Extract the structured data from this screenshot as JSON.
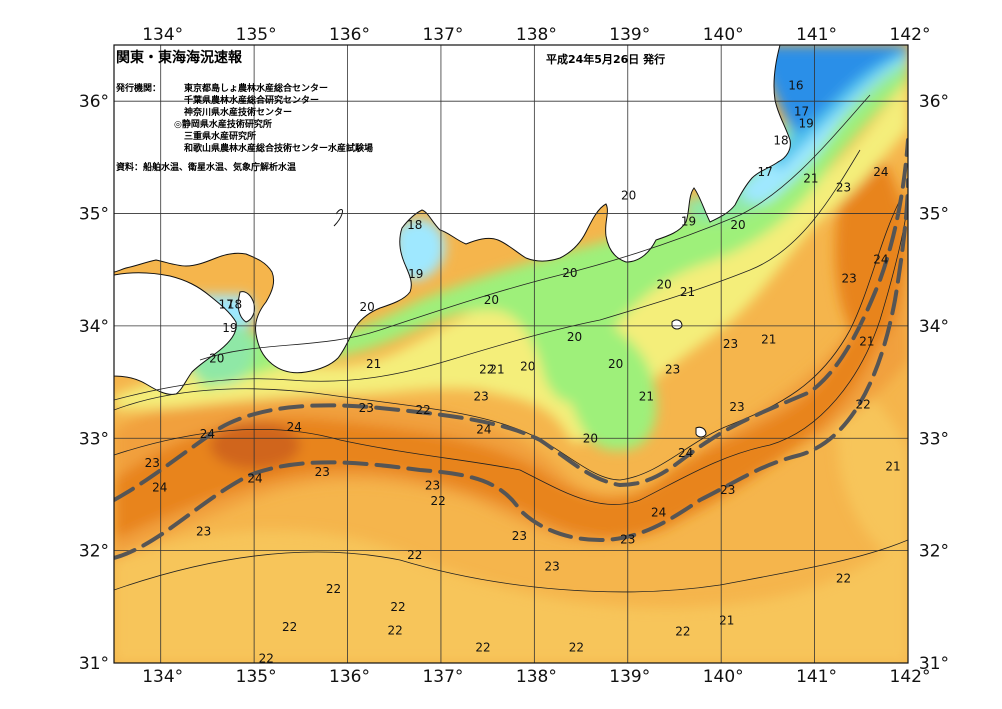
{
  "title": "関東・東海海況速報",
  "issue_date": "平成24年5月26日 発行",
  "issuers_label": "発行機関：",
  "issuers": [
    "東京都島しょ農林水産総合センター",
    "千葉県農林水産総合研究センター",
    "神奈川県水産技術センター",
    "◎静岡県水産技術研究所",
    "三重県水産研究所",
    "和歌山県農林水産総合技術センター水産試験場"
  ],
  "source": "資料：船舶水温、衛星水温、気象庁解析水温",
  "lon_ticks": [
    "134°",
    "135°",
    "136°",
    "137°",
    "138°",
    "139°",
    "140°",
    "141°",
    "142°"
  ],
  "lat_ticks": [
    "36°",
    "35°",
    "34°",
    "33°",
    "32°",
    "31°"
  ],
  "isotherm_labels": [
    {
      "t": "16",
      "lon": 140.8,
      "lat": 36.14
    },
    {
      "t": "17",
      "lon": 140.86,
      "lat": 35.91
    },
    {
      "t": "19",
      "lon": 140.91,
      "lat": 35.8
    },
    {
      "t": "18",
      "lon": 140.64,
      "lat": 35.65
    },
    {
      "t": "17",
      "lon": 140.47,
      "lat": 35.37
    },
    {
      "t": "21",
      "lon": 140.96,
      "lat": 35.31
    },
    {
      "t": "23",
      "lon": 141.31,
      "lat": 35.23
    },
    {
      "t": "24",
      "lon": 141.71,
      "lat": 35.37
    },
    {
      "t": "20",
      "lon": 139.01,
      "lat": 35.16
    },
    {
      "t": "19",
      "lon": 139.65,
      "lat": 34.93
    },
    {
      "t": "20",
      "lon": 140.18,
      "lat": 34.9
    },
    {
      "t": "24",
      "lon": 141.71,
      "lat": 34.59
    },
    {
      "t": "23",
      "lon": 141.37,
      "lat": 34.42
    },
    {
      "t": "21",
      "lon": 141.56,
      "lat": 33.86
    },
    {
      "t": "18",
      "lon": 134.79,
      "lat": 34.19
    },
    {
      "t": "18",
      "lon": 136.72,
      "lat": 34.9
    },
    {
      "t": "17",
      "lon": 134.7,
      "lat": 34.19
    },
    {
      "t": "19",
      "lon": 134.74,
      "lat": 33.98
    },
    {
      "t": "19",
      "lon": 136.73,
      "lat": 34.46
    },
    {
      "t": "20",
      "lon": 134.6,
      "lat": 33.71
    },
    {
      "t": "20",
      "lon": 136.21,
      "lat": 34.17
    },
    {
      "t": "20",
      "lon": 138.38,
      "lat": 34.47
    },
    {
      "t": "20",
      "lon": 137.54,
      "lat": 34.23
    },
    {
      "t": "21",
      "lon": 139.64,
      "lat": 34.3
    },
    {
      "t": "20",
      "lon": 139.39,
      "lat": 34.37
    },
    {
      "t": "20",
      "lon": 138.43,
      "lat": 33.9
    },
    {
      "t": "21",
      "lon": 140.51,
      "lat": 33.88
    },
    {
      "t": "23",
      "lon": 140.1,
      "lat": 33.84
    },
    {
      "t": "21",
      "lon": 136.28,
      "lat": 33.66
    },
    {
      "t": "21",
      "lon": 137.6,
      "lat": 33.61
    },
    {
      "t": "22",
      "lon": 137.49,
      "lat": 33.61
    },
    {
      "t": "20",
      "lon": 137.93,
      "lat": 33.64
    },
    {
      "t": "20",
      "lon": 138.87,
      "lat": 33.66
    },
    {
      "t": "23",
      "lon": 139.48,
      "lat": 33.61
    },
    {
      "t": "21",
      "lon": 139.2,
      "lat": 33.37
    },
    {
      "t": "23",
      "lon": 137.43,
      "lat": 33.37
    },
    {
      "t": "23",
      "lon": 136.2,
      "lat": 33.27
    },
    {
      "t": "22",
      "lon": 136.81,
      "lat": 33.25
    },
    {
      "t": "23",
      "lon": 140.17,
      "lat": 33.28
    },
    {
      "t": "22",
      "lon": 141.52,
      "lat": 33.3
    },
    {
      "t": "24",
      "lon": 134.5,
      "lat": 33.04
    },
    {
      "t": "24",
      "lon": 135.43,
      "lat": 33.1
    },
    {
      "t": "24",
      "lon": 137.46,
      "lat": 33.08
    },
    {
      "t": "20",
      "lon": 138.6,
      "lat": 33.0
    },
    {
      "t": "24",
      "lon": 139.62,
      "lat": 32.87
    },
    {
      "t": "21",
      "lon": 141.84,
      "lat": 32.75
    },
    {
      "t": "23",
      "lon": 133.91,
      "lat": 32.78
    },
    {
      "t": "23",
      "lon": 135.73,
      "lat": 32.7
    },
    {
      "t": "24",
      "lon": 135.01,
      "lat": 32.64
    },
    {
      "t": "24",
      "lon": 133.99,
      "lat": 32.56
    },
    {
      "t": "23",
      "lon": 136.91,
      "lat": 32.58
    },
    {
      "t": "22",
      "lon": 136.97,
      "lat": 32.44
    },
    {
      "t": "23",
      "lon": 140.07,
      "lat": 32.54
    },
    {
      "t": "24",
      "lon": 139.33,
      "lat": 32.34
    },
    {
      "t": "23",
      "lon": 134.46,
      "lat": 32.17
    },
    {
      "t": "23",
      "lon": 137.84,
      "lat": 32.13
    },
    {
      "t": "23",
      "lon": 139.0,
      "lat": 32.1
    },
    {
      "t": "22",
      "lon": 136.72,
      "lat": 31.96
    },
    {
      "t": "23",
      "lon": 138.19,
      "lat": 31.86
    },
    {
      "t": "22",
      "lon": 141.31,
      "lat": 31.75
    },
    {
      "t": "22",
      "lon": 135.85,
      "lat": 31.66
    },
    {
      "t": "22",
      "lon": 136.54,
      "lat": 31.5
    },
    {
      "t": "21",
      "lon": 140.06,
      "lat": 31.38
    },
    {
      "t": "22",
      "lon": 135.38,
      "lat": 31.32
    },
    {
      "t": "22",
      "lon": 136.51,
      "lat": 31.29
    },
    {
      "t": "22",
      "lon": 139.59,
      "lat": 31.28
    },
    {
      "t": "22",
      "lon": 137.45,
      "lat": 31.14
    },
    {
      "t": "22",
      "lon": 138.45,
      "lat": 31.14
    },
    {
      "t": "22",
      "lon": 135.13,
      "lat": 31.04
    }
  ],
  "colors": {
    "t16": "#2a8fe8",
    "t17": "#4fc3ee",
    "t18": "#9fe8ff",
    "t19": "#8fe8a6",
    "t20": "#9ef07a",
    "t21": "#f4ee7a",
    "t22": "#f7c55a",
    "t23": "#f1a03e",
    "t24": "#e8841f",
    "t25": "#d0651a",
    "land": "#ffffff",
    "kuroshio": "#555555"
  }
}
